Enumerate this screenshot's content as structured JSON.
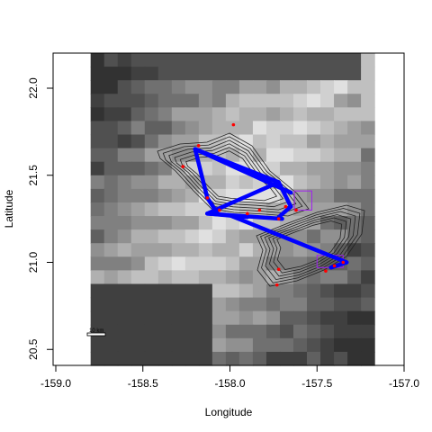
{
  "chart_data": {
    "type": "map",
    "xlabel": "Longitude",
    "ylabel": "Latitude",
    "xlim": [
      -159.0,
      -157.0
    ],
    "ylim": [
      20.5,
      22.2
    ],
    "x_ticks": [
      {
        "value": -159.0,
        "label": "-159.0"
      },
      {
        "value": -158.5,
        "label": "-158.5"
      },
      {
        "value": -158.0,
        "label": "-158.0"
      },
      {
        "value": -157.5,
        "label": "-157.5"
      },
      {
        "value": -157.0,
        "label": "-157.0"
      }
    ],
    "y_ticks": [
      {
        "value": 20.5,
        "label": "20.5"
      },
      {
        "value": 21.0,
        "label": "21.0"
      },
      {
        "value": 21.5,
        "label": "21.5"
      },
      {
        "value": 22.0,
        "label": "22.0"
      }
    ],
    "scale_bar_label": "10 km",
    "colors": {
      "network_edges": "#0000ff",
      "points": "#ff0000",
      "zones": "#a020f0",
      "contours": "#000000",
      "raster_dark": "#3c3c3c",
      "raster_light": "#d8d8d8"
    },
    "network_edges": [
      {
        "from": [
          -158.2,
          21.65
        ],
        "to": [
          -157.72,
          21.46
        ]
      },
      {
        "from": [
          -158.2,
          21.65
        ],
        "to": [
          -157.65,
          21.4
        ]
      },
      {
        "from": [
          -158.2,
          21.65
        ],
        "to": [
          -158.13,
          21.37
        ]
      },
      {
        "from": [
          -158.13,
          21.37
        ],
        "to": [
          -158.07,
          21.28
        ]
      },
      {
        "from": [
          -158.13,
          21.28
        ],
        "to": [
          -157.72,
          21.46
        ]
      },
      {
        "from": [
          -158.13,
          21.28
        ],
        "to": [
          -157.7,
          21.25
        ]
      },
      {
        "from": [
          -158.13,
          21.28
        ],
        "to": [
          -157.9,
          21.26
        ]
      },
      {
        "from": [
          -157.72,
          21.46
        ],
        "to": [
          -157.65,
          21.32
        ]
      },
      {
        "from": [
          -157.65,
          21.32
        ],
        "to": [
          -157.72,
          21.26
        ]
      },
      {
        "from": [
          -158.0,
          21.27
        ],
        "to": [
          -157.33,
          21.0
        ]
      },
      {
        "from": [
          -157.33,
          21.0
        ],
        "to": [
          -157.42,
          20.97
        ]
      }
    ],
    "points": [
      {
        "lon": -157.98,
        "lat": 21.79
      },
      {
        "lon": -158.18,
        "lat": 21.67
      },
      {
        "lon": -158.27,
        "lat": 21.55
      },
      {
        "lon": -158.13,
        "lat": 21.37
      },
      {
        "lon": -158.06,
        "lat": 21.3
      },
      {
        "lon": -157.9,
        "lat": 21.28
      },
      {
        "lon": -157.83,
        "lat": 21.3
      },
      {
        "lon": -157.72,
        "lat": 21.25
      },
      {
        "lon": -157.68,
        "lat": 21.32
      },
      {
        "lon": -157.62,
        "lat": 21.3
      },
      {
        "lon": -157.72,
        "lat": 20.96
      },
      {
        "lon": -157.73,
        "lat": 20.87
      },
      {
        "lon": -157.45,
        "lat": 20.95
      },
      {
        "lon": -157.4,
        "lat": 20.98
      },
      {
        "lon": -157.35,
        "lat": 21.0
      }
    ],
    "zones": [
      {
        "lon": [
          -157.63,
          -157.53
        ],
        "lat": [
          21.3,
          21.41
        ]
      },
      {
        "lon": [
          -157.5,
          -157.35
        ],
        "lat": [
          20.97,
          21.04
        ]
      }
    ],
    "grid": false,
    "legend": "none"
  }
}
